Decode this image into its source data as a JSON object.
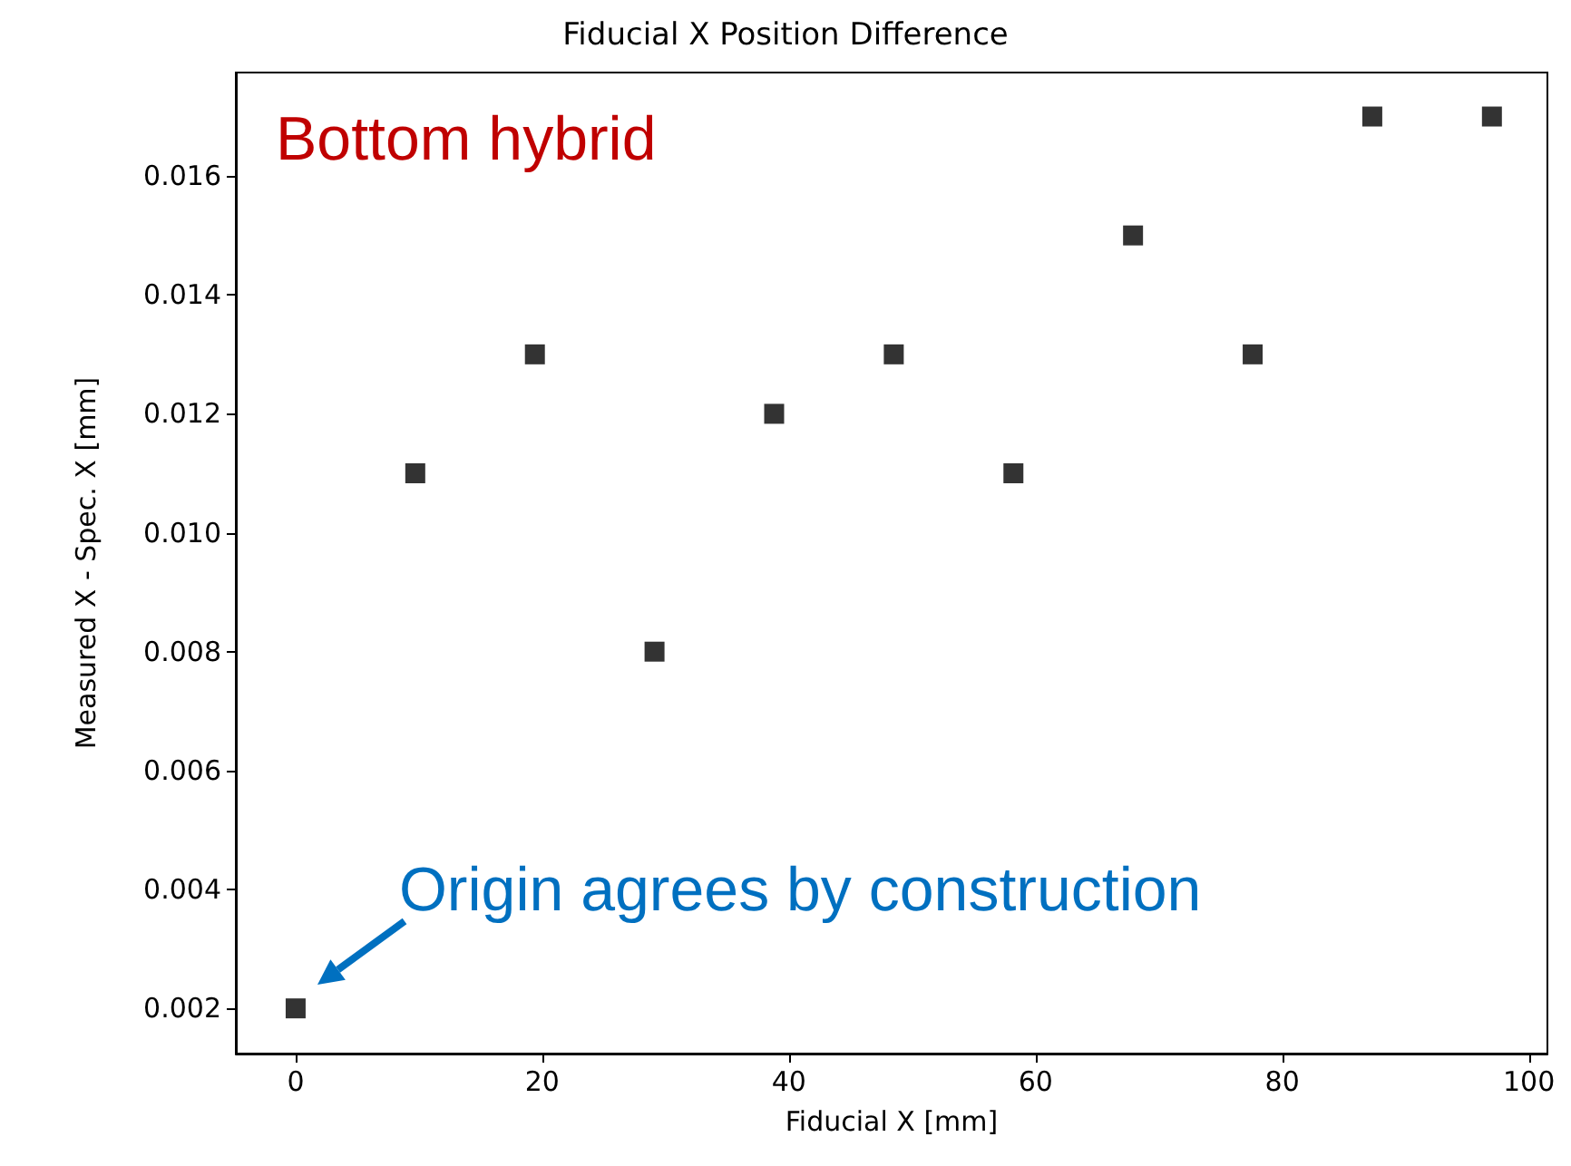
{
  "chart_data": {
    "type": "scatter",
    "title": "Fiducial X Position Difference",
    "xlabel": "Fiducial X [mm]",
    "ylabel": "Measured X - Spec. X [mm]",
    "x": [
      0,
      9.7,
      19.4,
      29.1,
      38.8,
      48.5,
      58.2,
      67.9,
      77.6,
      87.3,
      97.0
    ],
    "series": [
      {
        "color": "#000000",
        "values": [
          0.002,
          0.011,
          0.013,
          0.008,
          0.012,
          0.013,
          0.011,
          0.015,
          0.013,
          0.017,
          0.017
        ]
      }
    ],
    "xlim": [
      -4.85,
      101.5
    ],
    "ylim": [
      0.00124,
      0.01774
    ],
    "xticks": [
      0,
      20,
      40,
      60,
      80,
      100
    ],
    "yticks": [
      {
        "value": 0.002,
        "label": "0.002"
      },
      {
        "value": 0.004,
        "label": "0.004"
      },
      {
        "value": 0.006,
        "label": "0.006"
      },
      {
        "value": 0.008,
        "label": "0.008"
      },
      {
        "value": 0.01,
        "label": "0.010"
      },
      {
        "value": 0.012,
        "label": "0.012"
      },
      {
        "value": 0.014,
        "label": "0.014"
      },
      {
        "value": 0.016,
        "label": "0.016"
      }
    ],
    "marker": "square",
    "annotations": [
      "Bottom hybrid",
      {
        "text": "Origin agrees by construction",
        "x": 0,
        "y": 0.002
      }
    ]
  }
}
